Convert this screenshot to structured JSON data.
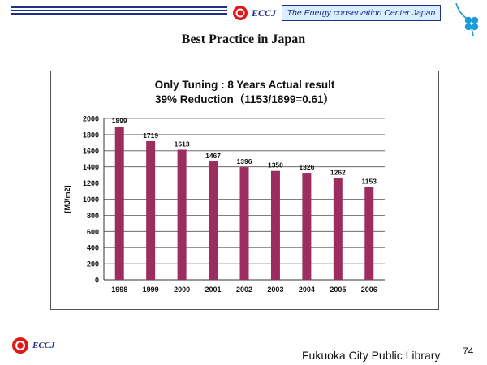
{
  "header": {
    "brand": "ECCJ",
    "org_name": "The Energy conservation Center Japan"
  },
  "slide": {
    "title": "Best Practice in Japan",
    "footer_text": "Fukuoka City Public Library",
    "page_number": "74",
    "footer_brand": "ECCJ"
  },
  "colors": {
    "bar": "#9b2e5e",
    "header_blue": "#1f2f8a",
    "header_box": "#d9efff",
    "logo_red": "#e01818"
  },
  "chart_data": {
    "type": "bar",
    "title_line1": "Only Tuning : 8 Years Actual result",
    "title_line2": "39% Reduction（1153/1899=0.61）",
    "ylabel": "[MJ/m2]",
    "xlabel": "",
    "categories": [
      "1998",
      "1999",
      "2000",
      "2001",
      "2002",
      "2003",
      "2004",
      "2005",
      "2006"
    ],
    "values": [
      1899,
      1719,
      1613,
      1467,
      1396,
      1350,
      1326,
      1262,
      1153
    ],
    "data_labels": [
      "1899",
      "1719",
      "1613",
      "1467",
      "1396",
      "1350",
      "1326",
      "1262",
      "1153"
    ],
    "ylim": [
      0,
      2000
    ],
    "yticks": [
      0,
      200,
      400,
      600,
      800,
      1000,
      1200,
      1400,
      1600,
      1800,
      2000
    ],
    "grid": true,
    "legend": "none"
  }
}
